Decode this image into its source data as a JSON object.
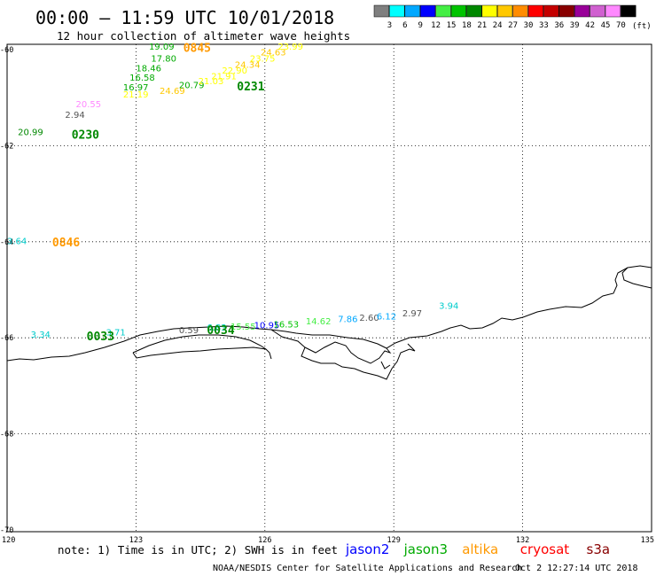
{
  "header": {
    "title": "00:00 — 11:59 UTC 10/01/2018",
    "subtitle": "12 hour collection of altimeter wave heights"
  },
  "legend": {
    "unit": "(ft)",
    "bins": [
      {
        "label": "3",
        "color": "#7f7f7f"
      },
      {
        "label": "6",
        "color": "#00ffff"
      },
      {
        "label": "9",
        "color": "#00a8ff"
      },
      {
        "label": "12",
        "color": "#0000ff"
      },
      {
        "label": "15",
        "color": "#44ee44"
      },
      {
        "label": "18",
        "color": "#00c400"
      },
      {
        "label": "21",
        "color": "#008800"
      },
      {
        "label": "24",
        "color": "#ffff00"
      },
      {
        "label": "27",
        "color": "#ffc800"
      },
      {
        "label": "30",
        "color": "#ff8c00"
      },
      {
        "label": "33",
        "color": "#ff0000"
      },
      {
        "label": "36",
        "color": "#c40000"
      },
      {
        "label": "39",
        "color": "#880000"
      },
      {
        "label": "42",
        "color": "#990099"
      },
      {
        "label": "45",
        "color": "#d060d0"
      },
      {
        "label": "70",
        "color": "#ff88ff"
      },
      {
        "label": "",
        "color": "#000000"
      }
    ]
  },
  "axes": {
    "lat_labels": [
      "-60",
      "-62",
      "-64",
      "-66",
      "-68",
      "-70"
    ],
    "lon_labels": [
      "120",
      "123",
      "126",
      "129",
      "132",
      "135"
    ]
  },
  "footer": {
    "note": "note: 1) Time is in UTC; 2) SWH is in feet",
    "satellites": [
      {
        "name": "jason2",
        "color": "#0000ff"
      },
      {
        "name": "jason3",
        "color": "#00aa00"
      },
      {
        "name": "altika",
        "color": "#ff9900"
      },
      {
        "name": "cryosat",
        "color": "#ff0000"
      },
      {
        "name": "s3a",
        "color": "#880000"
      }
    ],
    "credit": "NOAA/NESDIS Center for Satellite Applications and Research",
    "timestamp": "Oct  2 12:27:14 UTC 2018"
  },
  "observations": [
    {
      "value": "19.09",
      "lon": 123.3,
      "lat": -60.0,
      "color": "#00aa00"
    },
    {
      "value": "17.80",
      "lon": 123.35,
      "lat": -60.25,
      "color": "#00aa00"
    },
    {
      "value": "18.46",
      "lon": 123.0,
      "lat": -60.45,
      "color": "#00aa00"
    },
    {
      "value": "16.58",
      "lon": 122.85,
      "lat": -60.65,
      "color": "#00aa00"
    },
    {
      "value": "16.97",
      "lon": 122.7,
      "lat": -60.85,
      "color": "#00aa00"
    },
    {
      "value": "21.19",
      "lon": 122.7,
      "lat": -61.0,
      "color": "#ffff00"
    },
    {
      "value": "24.69",
      "lon": 123.55,
      "lat": -60.92,
      "color": "#ffc800"
    },
    {
      "value": "20.79",
      "lon": 124.0,
      "lat": -60.8,
      "color": "#00aa00"
    },
    {
      "value": "21.03",
      "lon": 124.45,
      "lat": -60.72,
      "color": "#ffff00"
    },
    {
      "value": "21.91",
      "lon": 124.75,
      "lat": -60.62,
      "color": "#ffff00"
    },
    {
      "value": "22.90",
      "lon": 125.0,
      "lat": -60.5,
      "color": "#ffff00"
    },
    {
      "value": "24.34",
      "lon": 125.3,
      "lat": -60.38,
      "color": "#ffc800"
    },
    {
      "value": "23.75",
      "lon": 125.65,
      "lat": -60.25,
      "color": "#ffff00"
    },
    {
      "value": "24.63",
      "lon": 125.9,
      "lat": -60.12,
      "color": "#ffc800"
    },
    {
      "value": "23.99",
      "lon": 126.3,
      "lat": -60.0,
      "color": "#ffff00"
    },
    {
      "value": "20.55",
      "lon": 121.6,
      "lat": -61.2,
      "color": "#ff88ff"
    },
    {
      "value": "2.94",
      "lon": 121.35,
      "lat": -61.42,
      "color": "#555555"
    },
    {
      "value": "20.99",
      "lon": 120.25,
      "lat": -61.78,
      "color": "#008800"
    },
    {
      "value": "3.64",
      "lon": 120.0,
      "lat": -64.05,
      "color": "#00cccc"
    },
    {
      "value": "3.34",
      "lon": 120.55,
      "lat": -66.0,
      "color": "#00cccc"
    },
    {
      "value": "3.71",
      "lon": 122.3,
      "lat": -65.95,
      "color": "#00cccc"
    },
    {
      "value": "0.59",
      "lon": 124.0,
      "lat": -65.9,
      "color": "#555555"
    },
    {
      "value": "6.83",
      "lon": 124.65,
      "lat": -65.85,
      "color": "#00cccc"
    },
    {
      "value": "15.55",
      "lon": 125.2,
      "lat": -65.83,
      "color": "#44ee44"
    },
    {
      "value": "10.95",
      "lon": 125.75,
      "lat": -65.8,
      "color": "#0000ff"
    },
    {
      "value": "16.53",
      "lon": 126.2,
      "lat": -65.78,
      "color": "#00c400"
    },
    {
      "value": "14.62",
      "lon": 126.95,
      "lat": -65.72,
      "color": "#44ee44"
    },
    {
      "value": "7.86",
      "lon": 127.7,
      "lat": -65.67,
      "color": "#00a8ff"
    },
    {
      "value": "2.60",
      "lon": 128.2,
      "lat": -65.65,
      "color": "#555555"
    },
    {
      "value": "6.12",
      "lon": 128.6,
      "lat": -65.62,
      "color": "#00a8ff"
    },
    {
      "value": "2.97",
      "lon": 129.2,
      "lat": -65.55,
      "color": "#555555"
    },
    {
      "value": "3.94",
      "lon": 130.05,
      "lat": -65.4,
      "color": "#00cccc"
    }
  ],
  "time_labels": [
    {
      "value": "0845",
      "lon": 124.1,
      "lat": -60.05,
      "color": "#ff9900"
    },
    {
      "value": "0231",
      "lon": 125.35,
      "lat": -60.85,
      "color": "#008800"
    },
    {
      "value": "0230",
      "lon": 121.5,
      "lat": -61.85,
      "color": "#008800"
    },
    {
      "value": "0846",
      "lon": 121.05,
      "lat": -64.1,
      "color": "#ff9900"
    },
    {
      "value": "0033",
      "lon": 121.85,
      "lat": -66.05,
      "color": "#008800"
    },
    {
      "value": "0034",
      "lon": 124.65,
      "lat": -65.92,
      "color": "#008800"
    }
  ]
}
